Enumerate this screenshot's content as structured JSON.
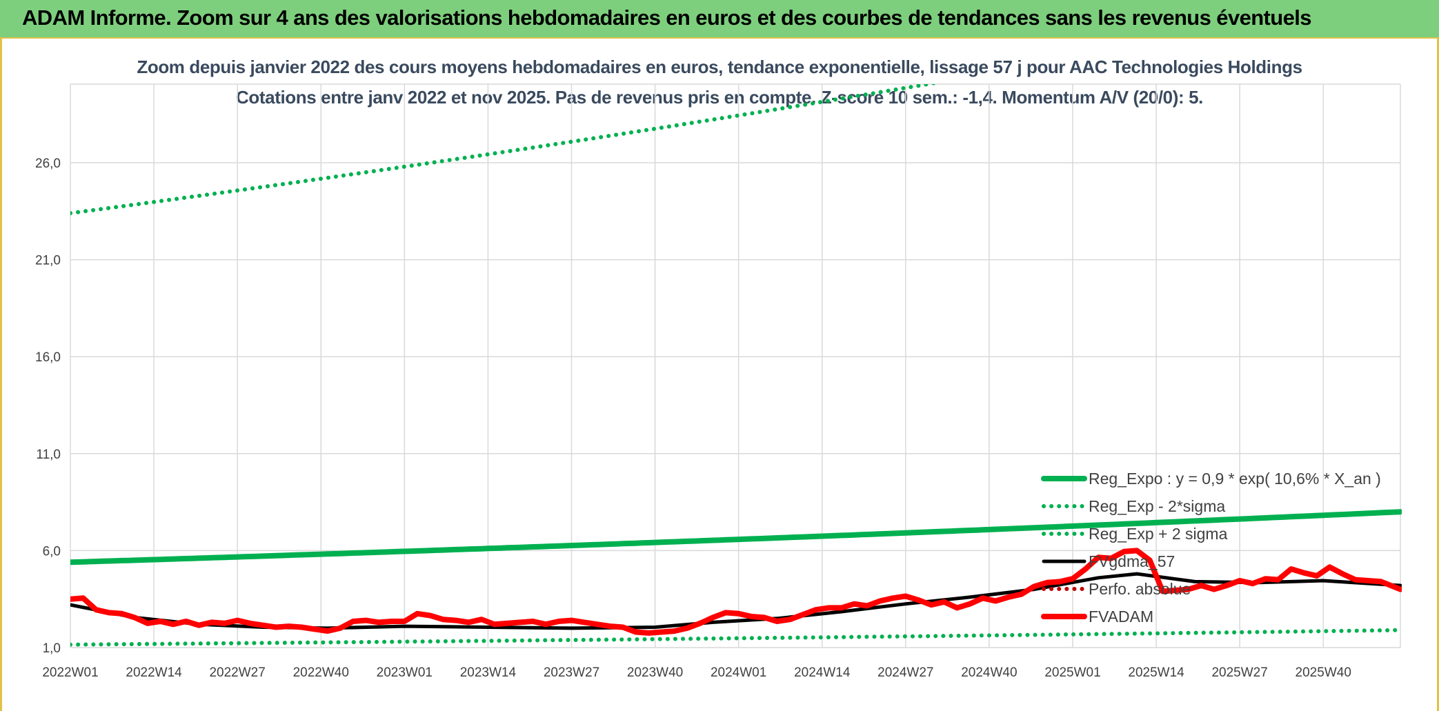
{
  "banner": {
    "title": "ADAM Informe. Zoom sur 4 ans des valorisations hebdomadaires en euros et des courbes de tendances sans les revenus éventuels"
  },
  "chart_data": {
    "type": "line",
    "title": "Zoom depuis janvier 2022 des cours moyens hebdomadaires en euros, tendance exponentielle, lissage 57 j pour AAC Technologies Holdings",
    "subtitle": "Cotations entre janv 2022 et nov 2025. Pas de revenus pris en compte. Z-score 10 sem.: -1,4. Momentum A/V (20/0): 5.",
    "ylim": [
      1.0,
      30.0
    ],
    "y_ticks": [
      "1,0",
      "6,0",
      "11,0",
      "16,0",
      "21,0",
      "26,0"
    ],
    "y_tick_values": [
      1,
      6,
      11,
      16,
      21,
      26
    ],
    "x_ticks": [
      "2022W01",
      "2022W14",
      "2022W27",
      "2022W40",
      "2023W01",
      "2023W14",
      "2023W27",
      "2023W40",
      "2024W01",
      "2024W14",
      "2024W27",
      "2024W40",
      "2025W01",
      "2025W14",
      "2025W27",
      "2025W40"
    ],
    "x_tick_index": [
      0,
      13,
      26,
      39,
      52,
      65,
      78,
      91,
      104,
      117,
      130,
      143,
      156,
      169,
      182,
      195
    ],
    "x_count": 208,
    "grid": true,
    "legend_position": "bottom-right",
    "colors": {
      "green": "#00b050",
      "black": "#000000",
      "red": "#ff0000",
      "perf": "#c00000"
    },
    "series": [
      {
        "name": "Reg_Expo : y = 0,9 * exp( 10,6% *  X_an )",
        "color": "#00b050",
        "style": "solid",
        "x": [
          0,
          207
        ],
        "values": [
          5.4,
          8.0
        ]
      },
      {
        "name": "Reg_Exp - 2*sigma",
        "color": "#00b050",
        "style": "dotted",
        "x": [
          0,
          207
        ],
        "values": [
          1.15,
          1.9
        ]
      },
      {
        "name": "Reg_Exp + 2 sigma",
        "color": "#00b050",
        "style": "dotted",
        "x": [
          0,
          207
        ],
        "values": [
          23.4,
          34.5
        ]
      },
      {
        "name": "FVgdma_57",
        "color": "#000000",
        "style": "solid",
        "x": [
          0,
          10,
          20,
          30,
          40,
          52,
          65,
          78,
          91,
          100,
          110,
          120,
          130,
          140,
          150,
          160,
          166,
          175,
          185,
          195,
          207
        ],
        "values": [
          3.2,
          2.55,
          2.2,
          2.05,
          2.0,
          2.1,
          2.05,
          2.0,
          2.05,
          2.3,
          2.5,
          2.85,
          3.25,
          3.6,
          4.0,
          4.6,
          4.8,
          4.4,
          4.35,
          4.45,
          4.2
        ]
      },
      {
        "name": "Perfo. absolue",
        "color": "#c00000",
        "style": "dotted",
        "x": [],
        "values": []
      },
      {
        "name": "FVADAM",
        "color": "#ff0000",
        "style": "solid",
        "x": [
          0,
          2,
          4,
          6,
          8,
          10,
          12,
          14,
          16,
          18,
          20,
          22,
          24,
          26,
          28,
          30,
          32,
          34,
          36,
          38,
          40,
          42,
          44,
          46,
          48,
          50,
          52,
          54,
          56,
          58,
          60,
          62,
          64,
          66,
          68,
          70,
          72,
          74,
          76,
          78,
          80,
          82,
          84,
          86,
          88,
          90,
          92,
          94,
          96,
          98,
          100,
          102,
          104,
          106,
          108,
          110,
          112,
          114,
          116,
          118,
          120,
          122,
          124,
          126,
          128,
          130,
          132,
          134,
          136,
          138,
          140,
          142,
          144,
          146,
          148,
          150,
          152,
          154,
          156,
          158,
          160,
          162,
          164,
          166,
          168,
          170,
          172,
          174,
          176,
          178,
          180,
          182,
          184,
          186,
          188,
          190,
          192,
          194,
          196,
          198,
          200,
          202,
          204,
          207
        ],
        "values": [
          3.5,
          3.55,
          2.95,
          2.8,
          2.75,
          2.55,
          2.25,
          2.35,
          2.2,
          2.35,
          2.15,
          2.3,
          2.25,
          2.4,
          2.25,
          2.15,
          2.05,
          2.1,
          2.05,
          1.95,
          1.85,
          2.0,
          2.35,
          2.4,
          2.3,
          2.35,
          2.35,
          2.75,
          2.65,
          2.45,
          2.4,
          2.3,
          2.45,
          2.2,
          2.25,
          2.3,
          2.35,
          2.2,
          2.35,
          2.4,
          2.3,
          2.2,
          2.1,
          2.05,
          1.8,
          1.75,
          1.8,
          1.85,
          2.0,
          2.25,
          2.55,
          2.8,
          2.75,
          2.6,
          2.55,
          2.35,
          2.45,
          2.7,
          2.95,
          3.05,
          3.05,
          3.25,
          3.15,
          3.4,
          3.55,
          3.65,
          3.45,
          3.2,
          3.35,
          3.05,
          3.25,
          3.55,
          3.4,
          3.6,
          3.75,
          4.15,
          4.35,
          4.4,
          4.55,
          5.05,
          5.65,
          5.6,
          5.95,
          6.0,
          5.5,
          3.9,
          3.95,
          4.0,
          4.2,
          4.0,
          4.2,
          4.45,
          4.3,
          4.55,
          4.5,
          5.05,
          4.85,
          4.7,
          5.15,
          4.8,
          4.5,
          4.45,
          4.4,
          4.0
        ]
      }
    ]
  }
}
